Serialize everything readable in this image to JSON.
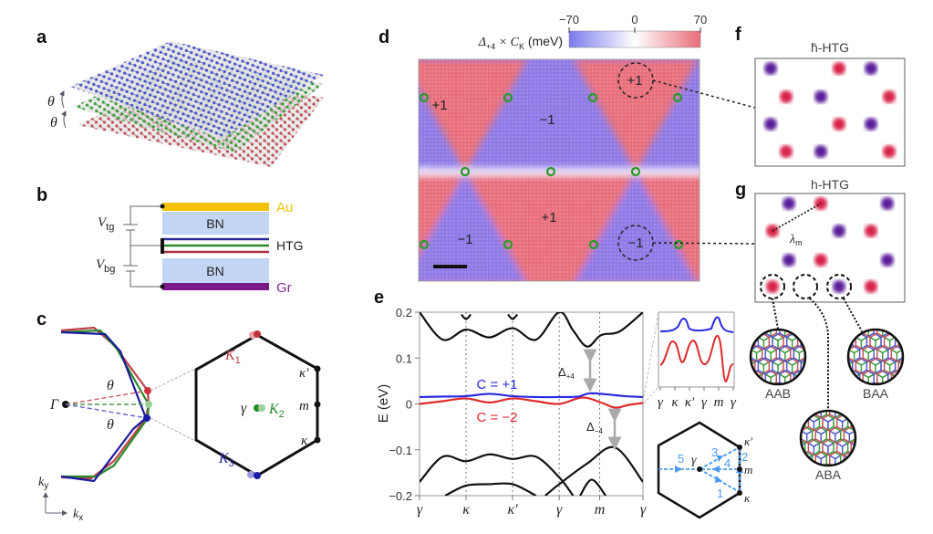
{
  "panels": {
    "a": {
      "label": "a",
      "theta1": "θ",
      "theta2": "θ",
      "layer_colors": [
        "#4a55c8",
        "#3a9a3a",
        "#c0505a"
      ]
    },
    "b": {
      "label": "b",
      "vtg": "V",
      "vtg_sub": "tg",
      "vbg": "V",
      "vbg_sub": "bg",
      "au": "Au",
      "bn_top": "BN",
      "htg": "HTG",
      "bn_bottom": "BN",
      "gr": "Gr",
      "colors": {
        "au": "#f2c200",
        "bn": "#c3d5f2",
        "gr": "#7a1a88"
      }
    },
    "c": {
      "label": "c",
      "gamma_cap": "Γ",
      "theta1": "θ",
      "theta2": "θ",
      "k1": "K",
      "k1_sub": "1",
      "k2": "K",
      "k2_sub": "2",
      "k3": "K",
      "k3_sub": "3",
      "gamma": "γ",
      "kappa_prime": "κ′",
      "m": "m",
      "kappa": "κ",
      "ky": "k",
      "ky_sub": "y",
      "kx": "k",
      "kx_sub": "x"
    },
    "d": {
      "label": "d",
      "colorbar_title": "Δ",
      "colorbar_title_sub": "+4",
      "colorbar_title_rest": " × C",
      "colorbar_title_sub2": "K",
      "colorbar_unit": " (meV)",
      "colorbar_ticks": [
        "−70",
        "0",
        "70"
      ],
      "colorbar_range": [
        -70,
        70
      ],
      "colors": {
        "negative": "#8f7ae6",
        "positive": "#e8707c"
      },
      "region_labels": [
        "+1",
        "−1",
        "+1",
        "+1",
        "−1",
        "−1"
      ]
    },
    "e": {
      "label": "e",
      "ylabel": "E (eV)",
      "c_plus": "C = +1",
      "c_minus": "C = −2",
      "delta_plus": "Δ",
      "delta_plus_sub": "+4",
      "delta_minus": "Δ",
      "delta_minus_sub": "−4",
      "inset_ticks": [
        "γ",
        "κ",
        "κ′",
        "γ",
        "m",
        "γ"
      ],
      "bz_labels": {
        "gamma": "γ",
        "kappa_prime": "κ′",
        "m": "m",
        "kappa": "κ",
        "paths": [
          "1",
          "2",
          "3",
          "4",
          "5"
        ]
      },
      "path_color": "#4a9af0"
    },
    "f": {
      "label": "f",
      "title": "h̄-HTG"
    },
    "g": {
      "label": "g",
      "title": "h-HTG",
      "lambda": "λ",
      "lambda_sub": "m",
      "stackings": [
        "AAB",
        "ABA",
        "BAA"
      ],
      "dot_colors": {
        "red": "#d8204a",
        "purple": "#5a1a9a"
      }
    }
  },
  "chart_data": {
    "type": "line",
    "xlabel": "",
    "ylabel": "E (eV)",
    "ylim": [
      -0.2,
      0.2
    ],
    "yticks": [
      "0.2",
      "0.1",
      "0",
      "−0.1",
      "−0.2"
    ],
    "ytick_values": [
      0.2,
      0.1,
      0,
      -0.1,
      -0.2
    ],
    "xticks": [
      "γ",
      "κ",
      "κ′",
      "γ",
      "m",
      "γ"
    ],
    "xtick_values": [
      0,
      1,
      2,
      3,
      3.87,
      4.8
    ],
    "xlim": [
      0,
      4.8
    ],
    "grid": "dotted vertical lines at high-symmetry points",
    "series": [
      {
        "name": "C = +1",
        "color": "#2a2ae0",
        "x": [
          0,
          0.5,
          1,
          1.5,
          2,
          2.5,
          3,
          3.4,
          3.65,
          4,
          4.4,
          4.8
        ],
        "y": [
          0.015,
          0.016,
          0.017,
          0.022,
          0.017,
          0.015,
          0.015,
          0.016,
          0.023,
          0.021,
          0.017,
          0.015
        ]
      },
      {
        "name": "C = −2",
        "color": "#e02a2a",
        "x": [
          0,
          0.5,
          1,
          1.5,
          2,
          2.5,
          3,
          3.5,
          3.9,
          4.2,
          4.5,
          4.8
        ],
        "y": [
          0,
          0.006,
          0.012,
          0.003,
          0.012,
          0.006,
          0,
          0.014,
          0.003,
          -0.008,
          -0.002,
          0.002
        ]
      },
      {
        "color": "#111",
        "x": [
          0,
          0.5,
          1,
          1.5,
          2,
          2.5,
          3,
          3.3,
          3.6,
          3.9,
          4.3,
          4.8
        ],
        "y": [
          0.2,
          0.14,
          0.162,
          0.145,
          0.165,
          0.14,
          0.2,
          0.16,
          0.125,
          0.15,
          0.158,
          0.2
        ]
      },
      {
        "color": "#111",
        "x": [
          0,
          0.5,
          1,
          1.5,
          2,
          2.5,
          3,
          3.3
        ],
        "y": [
          -0.17,
          -0.115,
          -0.125,
          -0.11,
          -0.12,
          -0.115,
          -0.16,
          -0.2
        ]
      },
      {
        "color": "#111",
        "x": [
          2.7,
          3,
          3.6,
          4.2,
          4.8
        ],
        "y": [
          -0.2,
          -0.175,
          -0.13,
          -0.095,
          -0.17
        ]
      },
      {
        "color": "#111",
        "x": [
          0.55,
          1,
          1.5,
          2,
          2.5
        ],
        "y": [
          -0.2,
          -0.178,
          -0.175,
          -0.175,
          -0.2
        ]
      },
      {
        "color": "#111",
        "x": [
          3.45,
          3.7,
          4
        ],
        "y": [
          -0.2,
          -0.165,
          -0.2
        ]
      },
      {
        "color": "#111",
        "x": [
          0.9,
          1,
          1.1
        ],
        "y": [
          0.195,
          0.185,
          0.195
        ]
      },
      {
        "color": "#111",
        "x": [
          1.9,
          2,
          2.1
        ],
        "y": [
          0.195,
          0.185,
          0.195
        ]
      }
    ]
  }
}
